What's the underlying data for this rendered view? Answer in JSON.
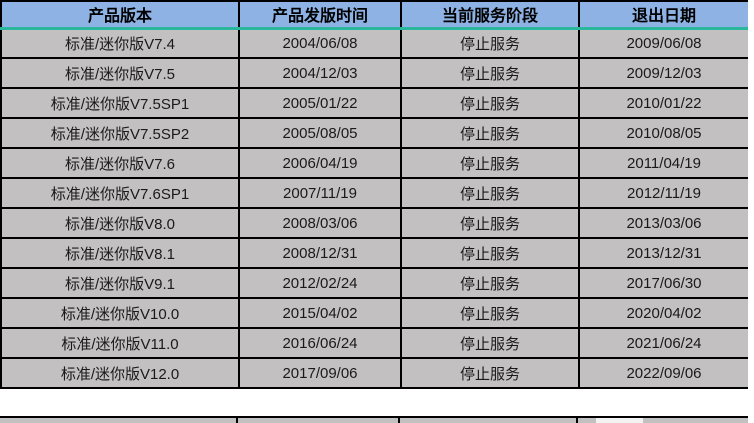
{
  "colors": {
    "header_bg": "#8DB2E3",
    "row_bg": "#C2C0C0",
    "header_underline": "#2BB79B",
    "border_color": "#000000",
    "text_color": "#1A1A1A",
    "page_bg": "#FFFFFF",
    "partial_highlight": "#F2F2F2"
  },
  "table": {
    "columns": [
      {
        "label": "产品版本"
      },
      {
        "label": "产品发版时间"
      },
      {
        "label": "当前服务阶段"
      },
      {
        "label": "退出日期"
      }
    ],
    "rows": [
      [
        "标准/迷你版V7.4",
        "2004/06/08",
        "停止服务",
        "2009/06/08"
      ],
      [
        "标准/迷你版V7.5",
        "2004/12/03",
        "停止服务",
        "2009/12/03"
      ],
      [
        "标准/迷你版V7.5SP1",
        "2005/01/22",
        "停止服务",
        "2010/01/22"
      ],
      [
        "标准/迷你版V7.5SP2",
        "2005/08/05",
        "停止服务",
        "2010/08/05"
      ],
      [
        "标准/迷你版V7.6",
        "2006/04/19",
        "停止服务",
        "2011/04/19"
      ],
      [
        "标准/迷你版V7.6SP1",
        "2007/11/19",
        "停止服务",
        "2012/11/19"
      ],
      [
        "标准/迷你版V8.0",
        "2008/03/06",
        "停止服务",
        "2013/03/06"
      ],
      [
        "标准/迷你版V8.1",
        "2008/12/31",
        "停止服务",
        "2013/12/31"
      ],
      [
        "标准/迷你版V9.1",
        "2012/02/24",
        "停止服务",
        "2017/06/30"
      ],
      [
        "标准/迷你版V10.0",
        "2015/04/02",
        "停止服务",
        "2020/04/02"
      ],
      [
        "标准/迷你版V11.0",
        "2016/06/24",
        "停止服务",
        "2021/06/24"
      ],
      [
        "标准/迷你版V12.0",
        "2017/09/06",
        "停止服务",
        "2022/09/06"
      ]
    ]
  }
}
